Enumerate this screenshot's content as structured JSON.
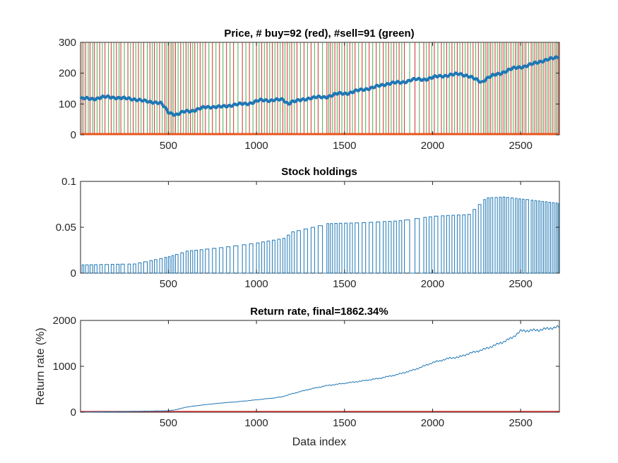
{
  "chart_data": [
    {
      "type": "line",
      "title": "Price,  # buy=92 (red), #sell=91 (green)",
      "xlabel": "",
      "ylabel": "",
      "xlim": [
        1,
        2720
      ],
      "ylim": [
        0,
        300
      ],
      "xticks": [
        500,
        1000,
        1500,
        2000,
        2500
      ],
      "yticks": [
        0,
        100,
        200,
        300
      ],
      "tick_labels_x": [
        "500",
        "1000",
        "1500",
        "2000",
        "2500"
      ],
      "tick_labels_y": [
        "0",
        "100",
        "200",
        "300"
      ],
      "buy_count": 92,
      "sell_count": 91,
      "buy_color": "#d32f2f",
      "sell_color": "#4caf50",
      "price_color": "#1f77b4",
      "baseline_color": "#e8541e",
      "price_anchors": {
        "x": [
          1,
          100,
          200,
          300,
          400,
          460,
          500,
          550,
          600,
          700,
          800,
          900,
          1000,
          1100,
          1150,
          1180,
          1200,
          1300,
          1400,
          1500,
          1600,
          1700,
          1800,
          1900,
          2000,
          2100,
          2150,
          2200,
          2250,
          2280,
          2300,
          2400,
          2500,
          2600,
          2720
        ],
        "y": [
          115,
          120,
          122,
          115,
          108,
          100,
          75,
          65,
          75,
          88,
          92,
          98,
          108,
          115,
          112,
          100,
          108,
          118,
          125,
          135,
          145,
          160,
          170,
          178,
          185,
          195,
          198,
          190,
          180,
          172,
          180,
          205,
          220,
          235,
          255
        ]
      },
      "buy_x": [
        10,
        30,
        55,
        80,
        110,
        140,
        175,
        205,
        230,
        270,
        300,
        330,
        360,
        395,
        420,
        450,
        480,
        500,
        520,
        540,
        570,
        600,
        625,
        650,
        680,
        710,
        750,
        790,
        830,
        870,
        920,
        960,
        1000,
        1030,
        1060,
        1090,
        1120,
        1150,
        1175,
        1200,
        1230,
        1270,
        1310,
        1350,
        1400,
        1420,
        1445,
        1470,
        1500,
        1530,
        1560,
        1600,
        1640,
        1680,
        1720,
        1750,
        1780,
        1810,
        1840,
        1900,
        1950,
        1980,
        2010,
        2050,
        2080,
        2110,
        2140,
        2170,
        2200,
        2230,
        2260,
        2290,
        2310,
        2330,
        2355,
        2380,
        2400,
        2420,
        2445,
        2470,
        2490,
        2510,
        2530,
        2560,
        2580,
        2600,
        2620,
        2640,
        2660,
        2680,
        2700,
        2715
      ],
      "sell_x": [
        20,
        45,
        70,
        95,
        125,
        160,
        190,
        220,
        250,
        285,
        315,
        345,
        380,
        408,
        435,
        465,
        490,
        510,
        530,
        555,
        585,
        612,
        638,
        665,
        695,
        730,
        770,
        810,
        850,
        895,
        940,
        980,
        1015,
        1045,
        1075,
        1105,
        1135,
        1162,
        1188,
        1215,
        1250,
        1290,
        1330,
        1375,
        1410,
        1432,
        1458,
        1485,
        1515,
        1545,
        1580,
        1620,
        1660,
        1700,
        1735,
        1765,
        1795,
        1825,
        1870,
        1925,
        1965,
        1995,
        2030,
        2065,
        2095,
        2125,
        2155,
        2185,
        2215,
        2245,
        2275,
        2300,
        2320,
        2342,
        2368,
        2390,
        2410,
        2432,
        2458,
        2480,
        2500,
        2520,
        2545,
        2570,
        2590,
        2610,
        2630,
        2650,
        2670,
        2690,
        2708
      ]
    },
    {
      "type": "line",
      "title": "Stock holdings",
      "xlabel": "",
      "ylabel": "",
      "xlim": [
        1,
        2720
      ],
      "ylim": [
        0,
        0.1
      ],
      "xticks": [
        500,
        1000,
        1500,
        2000,
        2500
      ],
      "yticks": [
        0,
        0.05,
        0.1
      ],
      "tick_labels_x": [
        "500",
        "1000",
        "1500",
        "2000",
        "2500"
      ],
      "tick_labels_y": [
        "0",
        "0.05",
        "0.1"
      ],
      "line_color": "#1f77b4",
      "holding_anchors": {
        "x": [
          1,
          300,
          500,
          600,
          800,
          1000,
          1150,
          1200,
          1400,
          1600,
          1800,
          2000,
          2200,
          2300,
          2400,
          2720
        ],
        "y": [
          0.009,
          0.01,
          0.018,
          0.024,
          0.028,
          0.033,
          0.038,
          0.045,
          0.054,
          0.055,
          0.057,
          0.062,
          0.064,
          0.082,
          0.083,
          0.076
        ]
      }
    },
    {
      "type": "line",
      "title": "Return rate, final=1862.34%",
      "xlabel": "Data index",
      "ylabel": "Return rate (%)",
      "xlim": [
        1,
        2720
      ],
      "ylim": [
        0,
        2000
      ],
      "xticks": [
        500,
        1000,
        1500,
        2000,
        2500
      ],
      "yticks": [
        0,
        1000,
        2000
      ],
      "tick_labels_x": [
        "500",
        "1000",
        "1500",
        "2000",
        "2500"
      ],
      "tick_labels_y": [
        "0",
        "1000",
        "2000"
      ],
      "line_color": "#1f77b4",
      "baseline_color": "#d32f2f",
      "final": 1862.34,
      "return_anchors": {
        "x": [
          1,
          200,
          400,
          500,
          550,
          600,
          700,
          800,
          900,
          1000,
          1100,
          1150,
          1200,
          1300,
          1400,
          1500,
          1600,
          1700,
          1800,
          1900,
          2000,
          2100,
          2150,
          2200,
          2300,
          2400,
          2450,
          2500,
          2600,
          2720
        ],
        "y": [
          0,
          10,
          25,
          30,
          60,
          110,
          160,
          200,
          230,
          270,
          310,
          340,
          400,
          500,
          580,
          630,
          680,
          740,
          820,
          930,
          1080,
          1180,
          1200,
          1270,
          1380,
          1530,
          1620,
          1770,
          1790,
          1862
        ]
      }
    }
  ]
}
